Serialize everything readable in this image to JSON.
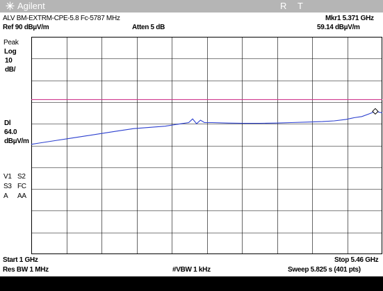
{
  "header": {
    "brand": "Agilent",
    "flag_r": "R",
    "flag_t": "T",
    "title": "ALV BM-EXTRM-CPE-5.8 Fc-5787 MHz",
    "marker": "Mkr1  5.371 GHz",
    "ref_level": "Ref 90 dBµV/m",
    "attenuation": "Atten 5 dB",
    "marker_value": "59.14 dBµV/m"
  },
  "left_panel": {
    "detector": "Peak",
    "scale_type": "Log",
    "scale_value": "10",
    "scale_unit": "dB/",
    "dl_label": "Dl",
    "dl_value": "64.0",
    "dl_unit": "dBµV/m",
    "v1": "V1",
    "s2": "S2",
    "s3": "S3",
    "fc": "FC",
    "a": "A",
    "aa": "AA"
  },
  "footer": {
    "start": "Start 1 GHz",
    "stop": "Stop 5.46 GHz",
    "res_bw": "Res BW 1 MHz",
    "vbw": "#VBW 1 kHz",
    "sweep": "Sweep 5.825 s (401 pts)"
  },
  "colors": {
    "trace": "#2b3fcf",
    "display_line": "#d0388e",
    "grid": "#000000",
    "titlebar": "#b5b5b5"
  },
  "chart_data": {
    "type": "line",
    "x_unit": "GHz",
    "xlim": [
      1,
      5.46
    ],
    "ylim": [
      0,
      90
    ],
    "y_scale": "log 10 dB/div",
    "grid": true,
    "display_line": 64.0,
    "marker": {
      "x": 5.371,
      "y": 59.14
    },
    "series": [
      {
        "x": [
          1.0,
          1.1,
          1.3,
          1.5,
          1.7,
          1.9,
          2.1,
          2.3,
          2.5,
          2.7,
          2.9,
          3.0,
          3.05,
          3.1,
          3.15,
          3.2,
          3.3,
          3.5,
          3.7,
          3.9,
          4.1,
          4.3,
          4.5,
          4.7,
          4.85,
          5.0,
          5.1,
          5.2,
          5.3,
          5.371,
          5.46
        ],
        "y": [
          45.5,
          46.0,
          47.0,
          48.0,
          49.0,
          50.0,
          51.0,
          52.0,
          52.5,
          53.0,
          54.0,
          54.5,
          56.0,
          54.0,
          55.5,
          54.5,
          54.5,
          54.3,
          54.2,
          54.2,
          54.3,
          54.5,
          54.7,
          54.9,
          55.2,
          55.8,
          56.5,
          57.0,
          58.2,
          59.14,
          58.5
        ]
      }
    ]
  }
}
